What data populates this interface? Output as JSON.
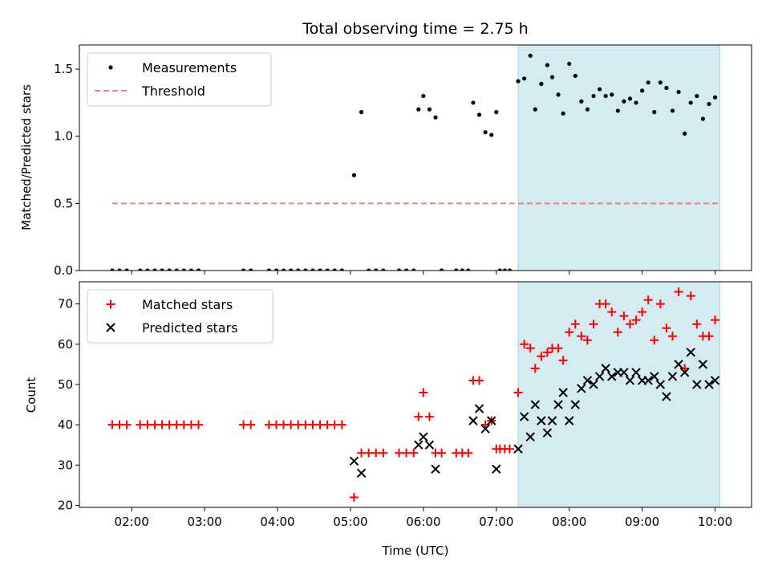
{
  "chart_data": [
    {
      "type": "scatter",
      "title": "Total observing time = 2.75 h",
      "xlabel": "",
      "ylabel": "Matched/Predicted stars",
      "xlim": [
        "01:17",
        "10:30"
      ],
      "ylim": [
        0,
        1.68
      ],
      "yticks": [
        0.0,
        0.5,
        1.0,
        1.5
      ],
      "ytick_labels": [
        "0.0",
        "0.5",
        "1.0",
        "1.5"
      ],
      "shaded_region": {
        "x_start": "07:18",
        "x_end": "10:04",
        "color": "#d3ebf1"
      },
      "legend": {
        "placement": "upper-left",
        "entries": [
          "Measurements",
          "Threshold"
        ]
      },
      "series": [
        {
          "name": "Measurements",
          "marker": "dot",
          "color": "#000000",
          "points": [
            [
              "01:44",
              0
            ],
            [
              "01:50",
              0
            ],
            [
              "01:56",
              0
            ],
            [
              "02:07",
              0
            ],
            [
              "02:13",
              0
            ],
            [
              "02:19",
              0
            ],
            [
              "02:25",
              0
            ],
            [
              "02:31",
              0
            ],
            [
              "02:37",
              0
            ],
            [
              "02:43",
              0
            ],
            [
              "02:49",
              0
            ],
            [
              "02:55",
              0
            ],
            [
              "03:32",
              0
            ],
            [
              "03:38",
              0
            ],
            [
              "03:53",
              0
            ],
            [
              "03:59",
              0
            ],
            [
              "04:05",
              0
            ],
            [
              "04:11",
              0
            ],
            [
              "04:17",
              0
            ],
            [
              "04:23",
              0
            ],
            [
              "04:29",
              0
            ],
            [
              "04:35",
              0
            ],
            [
              "04:41",
              0
            ],
            [
              "04:47",
              0
            ],
            [
              "04:53",
              0
            ],
            [
              "05:03",
              0.71
            ],
            [
              "05:09",
              1.18
            ],
            [
              "05:15",
              0
            ],
            [
              "05:21",
              0
            ],
            [
              "05:27",
              0
            ],
            [
              "05:40",
              0
            ],
            [
              "05:46",
              0
            ],
            [
              "05:52",
              0
            ],
            [
              "05:56",
              1.2
            ],
            [
              "06:00",
              1.3
            ],
            [
              "06:05",
              1.2
            ],
            [
              "06:10",
              1.14
            ],
            [
              "06:15",
              0
            ],
            [
              "06:27",
              0
            ],
            [
              "06:32",
              0
            ],
            [
              "06:37",
              0
            ],
            [
              "06:41",
              1.25
            ],
            [
              "06:46",
              1.16
            ],
            [
              "06:51",
              1.03
            ],
            [
              "06:56",
              1.01
            ],
            [
              "07:00",
              1.18
            ],
            [
              "07:03",
              0
            ],
            [
              "07:07",
              0
            ],
            [
              "07:11",
              0
            ],
            [
              "07:18",
              1.41
            ],
            [
              "07:23",
              1.43
            ],
            [
              "07:28",
              1.6
            ],
            [
              "07:32",
              1.2
            ],
            [
              "07:37",
              1.39
            ],
            [
              "07:42",
              1.53
            ],
            [
              "07:46",
              1.44
            ],
            [
              "07:51",
              1.31
            ],
            [
              "07:55",
              1.17
            ],
            [
              "08:00",
              1.54
            ],
            [
              "08:05",
              1.45
            ],
            [
              "08:10",
              1.26
            ],
            [
              "08:15",
              1.2
            ],
            [
              "08:20",
              1.3
            ],
            [
              "08:25",
              1.35
            ],
            [
              "08:30",
              1.3
            ],
            [
              "08:35",
              1.31
            ],
            [
              "08:40",
              1.19
            ],
            [
              "08:45",
              1.26
            ],
            [
              "08:50",
              1.28
            ],
            [
              "08:55",
              1.25
            ],
            [
              "09:00",
              1.34
            ],
            [
              "09:05",
              1.4
            ],
            [
              "09:10",
              1.18
            ],
            [
              "09:15",
              1.4
            ],
            [
              "09:20",
              1.36
            ],
            [
              "09:25",
              1.19
            ],
            [
              "09:30",
              1.33
            ],
            [
              "09:35",
              1.02
            ],
            [
              "09:40",
              1.25
            ],
            [
              "09:45",
              1.3
            ],
            [
              "09:50",
              1.13
            ],
            [
              "09:55",
              1.24
            ],
            [
              "10:00",
              1.29
            ]
          ]
        },
        {
          "name": "Threshold",
          "line_style": "dashed",
          "color": "#f08080",
          "points": [
            [
              "01:44",
              0.5
            ],
            [
              "10:04",
              0.5
            ]
          ]
        }
      ]
    },
    {
      "type": "scatter",
      "title": "",
      "xlabel": "Time (UTC)",
      "ylabel": "Count",
      "xlim": [
        "01:17",
        "10:30"
      ],
      "ylim": [
        19.5,
        75.5
      ],
      "yticks": [
        20,
        30,
        40,
        50,
        60,
        70
      ],
      "xticks": [
        "02:00",
        "03:00",
        "04:00",
        "05:00",
        "06:00",
        "07:00",
        "08:00",
        "09:00",
        "10:00"
      ],
      "shaded_region": {
        "x_start": "07:18",
        "x_end": "10:04",
        "color": "#d3ebf1"
      },
      "legend": {
        "placement": "upper-left",
        "entries": [
          "Matched stars",
          "Predicted stars"
        ]
      },
      "series": [
        {
          "name": "Matched stars",
          "marker": "plus",
          "color": "#ff0000",
          "points": [
            [
              "01:44",
              40
            ],
            [
              "01:50",
              40
            ],
            [
              "01:56",
              40
            ],
            [
              "02:07",
              40
            ],
            [
              "02:13",
              40
            ],
            [
              "02:19",
              40
            ],
            [
              "02:25",
              40
            ],
            [
              "02:31",
              40
            ],
            [
              "02:37",
              40
            ],
            [
              "02:43",
              40
            ],
            [
              "02:49",
              40
            ],
            [
              "02:55",
              40
            ],
            [
              "03:32",
              40
            ],
            [
              "03:38",
              40
            ],
            [
              "03:53",
              40
            ],
            [
              "03:59",
              40
            ],
            [
              "04:05",
              40
            ],
            [
              "04:11",
              40
            ],
            [
              "04:17",
              40
            ],
            [
              "04:23",
              40
            ],
            [
              "04:29",
              40
            ],
            [
              "04:35",
              40
            ],
            [
              "04:41",
              40
            ],
            [
              "04:47",
              40
            ],
            [
              "04:53",
              40
            ],
            [
              "05:03",
              22
            ],
            [
              "05:09",
              33
            ],
            [
              "05:15",
              33
            ],
            [
              "05:21",
              33
            ],
            [
              "05:27",
              33
            ],
            [
              "05:40",
              33
            ],
            [
              "05:46",
              33
            ],
            [
              "05:52",
              33
            ],
            [
              "05:56",
              42
            ],
            [
              "06:00",
              48
            ],
            [
              "06:05",
              42
            ],
            [
              "06:10",
              33
            ],
            [
              "06:15",
              33
            ],
            [
              "06:27",
              33
            ],
            [
              "06:32",
              33
            ],
            [
              "06:37",
              33
            ],
            [
              "06:41",
              51
            ],
            [
              "06:46",
              51
            ],
            [
              "06:51",
              40
            ],
            [
              "06:56",
              41
            ],
            [
              "07:00",
              34
            ],
            [
              "07:03",
              34
            ],
            [
              "07:07",
              34
            ],
            [
              "07:11",
              34
            ],
            [
              "07:18",
              48
            ],
            [
              "07:23",
              60
            ],
            [
              "07:28",
              59
            ],
            [
              "07:32",
              54
            ],
            [
              "07:37",
              57
            ],
            [
              "07:42",
              58
            ],
            [
              "07:46",
              59
            ],
            [
              "07:51",
              59
            ],
            [
              "07:55",
              56
            ],
            [
              "08:00",
              63
            ],
            [
              "08:05",
              65
            ],
            [
              "08:10",
              62
            ],
            [
              "08:15",
              61
            ],
            [
              "08:20",
              65
            ],
            [
              "08:25",
              70
            ],
            [
              "08:30",
              70
            ],
            [
              "08:35",
              68
            ],
            [
              "08:40",
              63
            ],
            [
              "08:45",
              67
            ],
            [
              "08:50",
              65
            ],
            [
              "08:55",
              66
            ],
            [
              "09:00",
              68
            ],
            [
              "09:05",
              71
            ],
            [
              "09:10",
              61
            ],
            [
              "09:15",
              70
            ],
            [
              "09:20",
              64
            ],
            [
              "09:25",
              62
            ],
            [
              "09:30",
              73
            ],
            [
              "09:35",
              54
            ],
            [
              "09:40",
              72
            ],
            [
              "09:45",
              65
            ],
            [
              "09:50",
              62
            ],
            [
              "09:55",
              62
            ],
            [
              "10:00",
              66
            ]
          ]
        },
        {
          "name": "Predicted stars",
          "marker": "x",
          "color": "#000000",
          "points": [
            [
              "05:03",
              31
            ],
            [
              "05:09",
              28
            ],
            [
              "05:56",
              35
            ],
            [
              "06:00",
              37
            ],
            [
              "06:05",
              35
            ],
            [
              "06:10",
              29
            ],
            [
              "06:41",
              41
            ],
            [
              "06:46",
              44
            ],
            [
              "06:51",
              39
            ],
            [
              "06:56",
              41
            ],
            [
              "07:00",
              29
            ],
            [
              "07:18",
              34
            ],
            [
              "07:23",
              42
            ],
            [
              "07:28",
              37
            ],
            [
              "07:32",
              45
            ],
            [
              "07:37",
              41
            ],
            [
              "07:42",
              38
            ],
            [
              "07:46",
              41
            ],
            [
              "07:51",
              45
            ],
            [
              "07:55",
              48
            ],
            [
              "08:00",
              41
            ],
            [
              "08:05",
              45
            ],
            [
              "08:10",
              49
            ],
            [
              "08:15",
              51
            ],
            [
              "08:20",
              50
            ],
            [
              "08:25",
              52
            ],
            [
              "08:30",
              54
            ],
            [
              "08:35",
              52
            ],
            [
              "08:40",
              53
            ],
            [
              "08:45",
              53
            ],
            [
              "08:50",
              51
            ],
            [
              "08:55",
              53
            ],
            [
              "09:00",
              51
            ],
            [
              "09:05",
              51
            ],
            [
              "09:10",
              52
            ],
            [
              "09:15",
              50
            ],
            [
              "09:20",
              47
            ],
            [
              "09:25",
              52
            ],
            [
              "09:30",
              55
            ],
            [
              "09:35",
              53
            ],
            [
              "09:40",
              58
            ],
            [
              "09:45",
              50
            ],
            [
              "09:50",
              55
            ],
            [
              "09:55",
              50
            ],
            [
              "10:00",
              51
            ]
          ]
        }
      ]
    }
  ]
}
